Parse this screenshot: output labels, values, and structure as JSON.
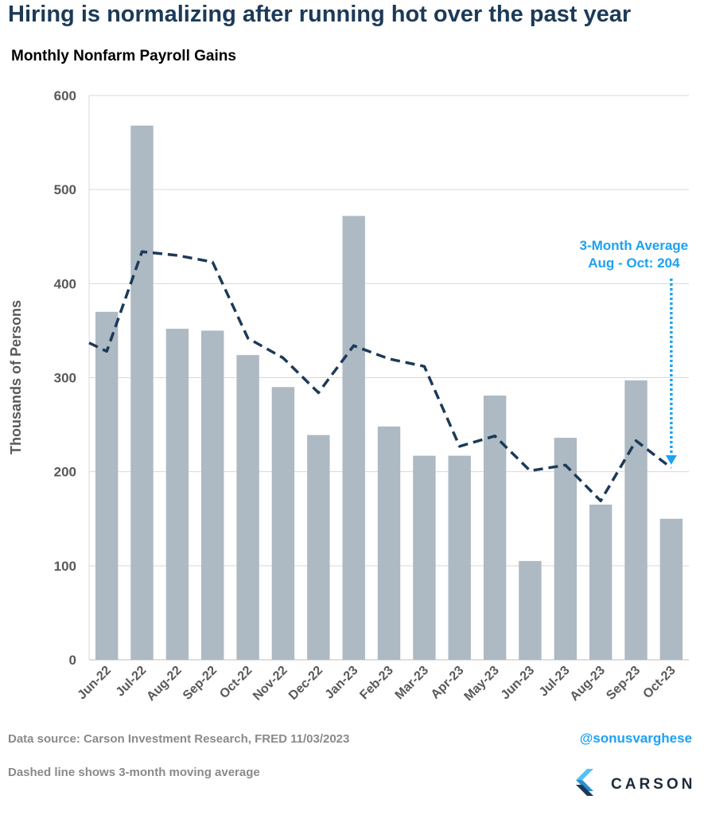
{
  "headline": "Hiring is normalizing after running hot over the past year",
  "source": "Data source: Carson Investment Research, FRED   11/03/2023",
  "note": "Dashed line shows 3-month moving average",
  "handle": "@sonusvarghese",
  "brand": {
    "name": "CARSON",
    "colors": {
      "light": "#4fc3f7",
      "dark": "#1c3a58"
    }
  },
  "colors": {
    "bar": "#adb9c3",
    "line": "#1c3a58",
    "annotation": "#1da1f2",
    "headline": "#1c3a58",
    "grid": "#d9d9d9",
    "axis_text": "#595959"
  },
  "chart_data": {
    "type": "bar",
    "title": "Monthly Nonfarm Payroll Gains",
    "ylabel": "Thousands of Persons",
    "xlabel": "",
    "ylim": [
      0,
      600
    ],
    "yticks": [
      0,
      100,
      200,
      300,
      400,
      500,
      600
    ],
    "grid": true,
    "categories": [
      "Jun-22",
      "Jul-22",
      "Aug-22",
      "Sep-22",
      "Oct-22",
      "Nov-22",
      "Dec-22",
      "Jan-23",
      "Feb-23",
      "Mar-23",
      "Apr-23",
      "May-23",
      "Jun-23",
      "Jul-23",
      "Aug-23",
      "Sep-23",
      "Oct-23"
    ],
    "series": [
      {
        "type": "bar",
        "values": [
          370,
          568,
          352,
          350,
          324,
          290,
          239,
          472,
          248,
          217,
          217,
          281,
          105,
          236,
          165,
          297,
          150
        ]
      },
      {
        "type": "line",
        "style": "dashed",
        "start_value": 337,
        "values": [
          328,
          434,
          430,
          423,
          342,
          321,
          284,
          334,
          320,
          312,
          227,
          238,
          201,
          207,
          169,
          233,
          204
        ]
      }
    ],
    "annotation": {
      "lines": [
        "3-Month Average",
        "Aug - Oct: 204"
      ],
      "category": "Oct-23",
      "arrow": "dotted-down"
    }
  }
}
